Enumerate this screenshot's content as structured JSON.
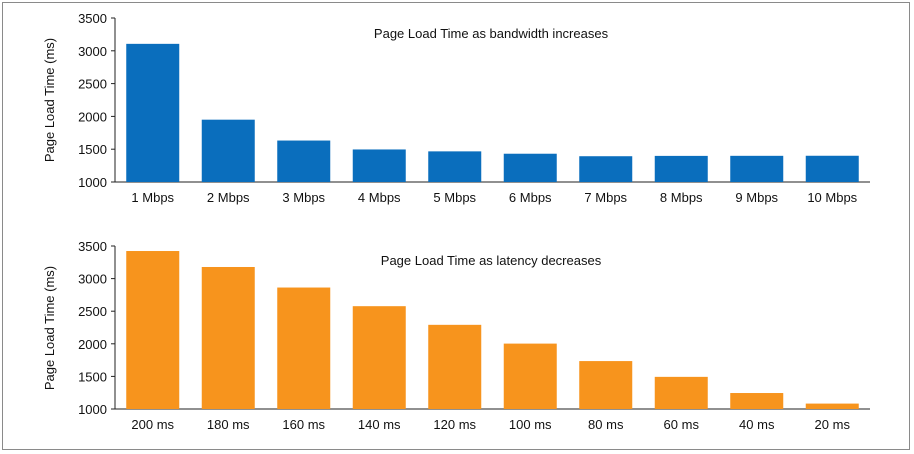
{
  "chart_data": [
    {
      "type": "bar",
      "title": "Page Load Time as bandwidth increases",
      "ylabel": "Page Load Time (ms)",
      "xlabel": "",
      "ylim": [
        1000,
        3500
      ],
      "yticks": [
        1000,
        1500,
        2000,
        2500,
        3000,
        3500
      ],
      "categories": [
        "1 Mbps",
        "2 Mbps",
        "3 Mbps",
        "4 Mbps",
        "5 Mbps",
        "6 Mbps",
        "7 Mbps",
        "8 Mbps",
        "9 Mbps",
        "10 Mbps"
      ],
      "values": [
        3106,
        1950,
        1632,
        1496,
        1467,
        1431,
        1393,
        1398,
        1399,
        1400
      ],
      "color": "#0a6ebd"
    },
    {
      "type": "bar",
      "title": "Page Load Time as latency decreases",
      "ylabel": "Page Load Time (ms)",
      "xlabel": "",
      "ylim": [
        1000,
        3500
      ],
      "yticks": [
        1000,
        1500,
        2000,
        2500,
        3000,
        3500
      ],
      "categories": [
        "200 ms",
        "180 ms",
        "160 ms",
        "140 ms",
        "120 ms",
        "100 ms",
        "80 ms",
        "60 ms",
        "40 ms",
        "20 ms"
      ],
      "values": [
        3423,
        3178,
        2863,
        2577,
        2291,
        2003,
        1735,
        1493,
        1245,
        1083
      ],
      "color": "#f7941d"
    }
  ]
}
